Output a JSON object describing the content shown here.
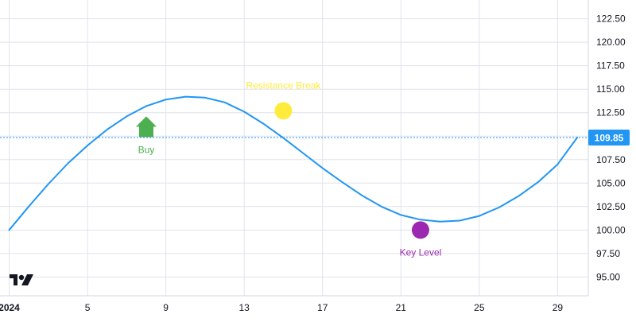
{
  "chart_data": {
    "type": "line",
    "x": [
      "2024-01-01",
      "2024-01-02",
      "2024-01-03",
      "2024-01-04",
      "2024-01-05",
      "2024-01-06",
      "2024-01-07",
      "2024-01-08",
      "2024-01-09",
      "2024-01-10",
      "2024-01-11",
      "2024-01-12",
      "2024-01-13",
      "2024-01-14",
      "2024-01-15",
      "2024-01-16",
      "2024-01-17",
      "2024-01-18",
      "2024-01-19",
      "2024-01-20",
      "2024-01-21",
      "2024-01-22",
      "2024-01-23",
      "2024-01-24",
      "2024-01-25",
      "2024-01-26",
      "2024-01-27",
      "2024-01-28",
      "2024-01-29",
      "2024-01-30"
    ],
    "values": [
      100.0,
      102.5,
      104.9,
      107.1,
      109.0,
      110.7,
      112.1,
      113.2,
      113.9,
      114.2,
      114.1,
      113.6,
      112.6,
      111.3,
      109.8,
      108.2,
      106.6,
      105.1,
      103.7,
      102.5,
      101.6,
      101.1,
      100.9,
      101.0,
      101.5,
      102.4,
      103.6,
      105.1,
      107.0,
      109.85
    ],
    "last_value_label": "109.85",
    "ylim": [
      93.0,
      124.5
    ],
    "y_ticks": [
      "122.50",
      "120.00",
      "117.50",
      "115.00",
      "112.50",
      "110.00",
      "107.50",
      "105.00",
      "102.50",
      "100.00",
      "97.50",
      "95.00"
    ],
    "x_ticks": [
      "2024",
      "5",
      "9",
      "13",
      "17",
      "21",
      "25",
      "29"
    ],
    "markers": [
      {
        "type": "arrow-up",
        "date": "2024-01-08",
        "value": 111.0,
        "text": "Buy",
        "color": "#4caf50"
      },
      {
        "type": "circle",
        "date": "2024-01-15",
        "value": 112.7,
        "text": "Resistance Break",
        "color": "#ffeb3b"
      },
      {
        "type": "circle",
        "date": "2024-01-22",
        "value": 100.0,
        "text": "Key Level",
        "color": "#9c27b0"
      }
    ],
    "grid": true,
    "colors": {
      "line": "#2196f3",
      "price_tag": "#2196f3",
      "grid": "#e0e3eb",
      "axis_text": "#131722"
    },
    "logo": "tradingview-logo"
  }
}
